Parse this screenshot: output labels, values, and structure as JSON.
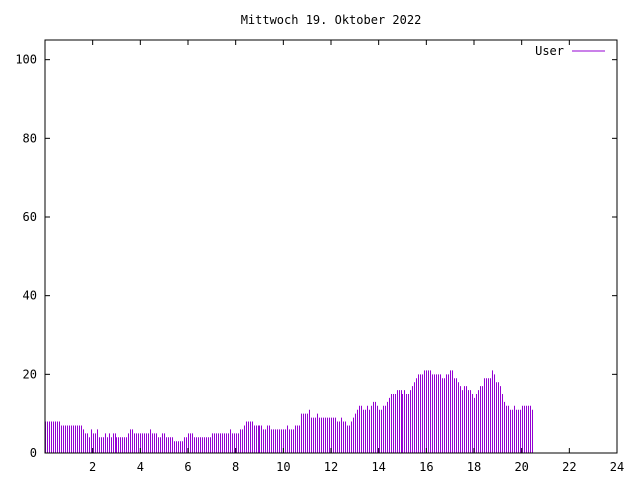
{
  "chart_data": {
    "type": "bar",
    "title": "Mittwoch 19. Oktober 2022",
    "xlabel": "",
    "ylabel": "",
    "xlim": [
      0,
      24
    ],
    "ylim": [
      0,
      105
    ],
    "x_ticks": [
      2,
      4,
      6,
      8,
      10,
      12,
      14,
      16,
      18,
      20,
      22,
      24
    ],
    "y_ticks": [
      0,
      20,
      40,
      60,
      80,
      100
    ],
    "grid": false,
    "legend_position": "top-right",
    "series": [
      {
        "name": "User",
        "color": "#9400d3",
        "sample_interval_hours": 0.0833333,
        "values": [
          8,
          8,
          8,
          8,
          8,
          8,
          8,
          8,
          7,
          7,
          7,
          7,
          7,
          7,
          7,
          7,
          7,
          7,
          7,
          6,
          5,
          5,
          4,
          6,
          5,
          5,
          6,
          4,
          4,
          4,
          5,
          4,
          5,
          4,
          5,
          5,
          4,
          4,
          4,
          4,
          4,
          4,
          5,
          6,
          6,
          5,
          5,
          5,
          5,
          5,
          5,
          5,
          5,
          6,
          5,
          5,
          5,
          4,
          4,
          5,
          5,
          4,
          4,
          4,
          4,
          3,
          3,
          3,
          3,
          3,
          4,
          4,
          5,
          5,
          5,
          4,
          4,
          4,
          4,
          4,
          4,
          4,
          4,
          4,
          5,
          5,
          5,
          5,
          5,
          5,
          5,
          5,
          5,
          6,
          5,
          5,
          5,
          5,
          6,
          6,
          7,
          8,
          8,
          8,
          8,
          7,
          7,
          7,
          7,
          7,
          6,
          6,
          7,
          7,
          6,
          6,
          6,
          6,
          6,
          6,
          6,
          6,
          7,
          6,
          6,
          6,
          7,
          7,
          7,
          10,
          10,
          10,
          10,
          11,
          9,
          9,
          9,
          10,
          9,
          9,
          9,
          9,
          9,
          9,
          9,
          9,
          9,
          8,
          8,
          9,
          8,
          8,
          7,
          7,
          8,
          9,
          10,
          11,
          12,
          12,
          11,
          11,
          12,
          11,
          12,
          13,
          13,
          12,
          11,
          11,
          12,
          12,
          13,
          14,
          15,
          15,
          15,
          16,
          16,
          16,
          15,
          16,
          15,
          15,
          16,
          17,
          18,
          19,
          20,
          20,
          20,
          21,
          21,
          21,
          21,
          20,
          20,
          20,
          20,
          20,
          19,
          19,
          20,
          20,
          21,
          21,
          19,
          19,
          18,
          17,
          16,
          17,
          17,
          16,
          16,
          15,
          14,
          15,
          16,
          17,
          17,
          19,
          19,
          19,
          19,
          21,
          20,
          18,
          18,
          17,
          15,
          13,
          12,
          12,
          11,
          11,
          12,
          11,
          11,
          11,
          12,
          12,
          12,
          12,
          12,
          11
        ]
      }
    ]
  }
}
